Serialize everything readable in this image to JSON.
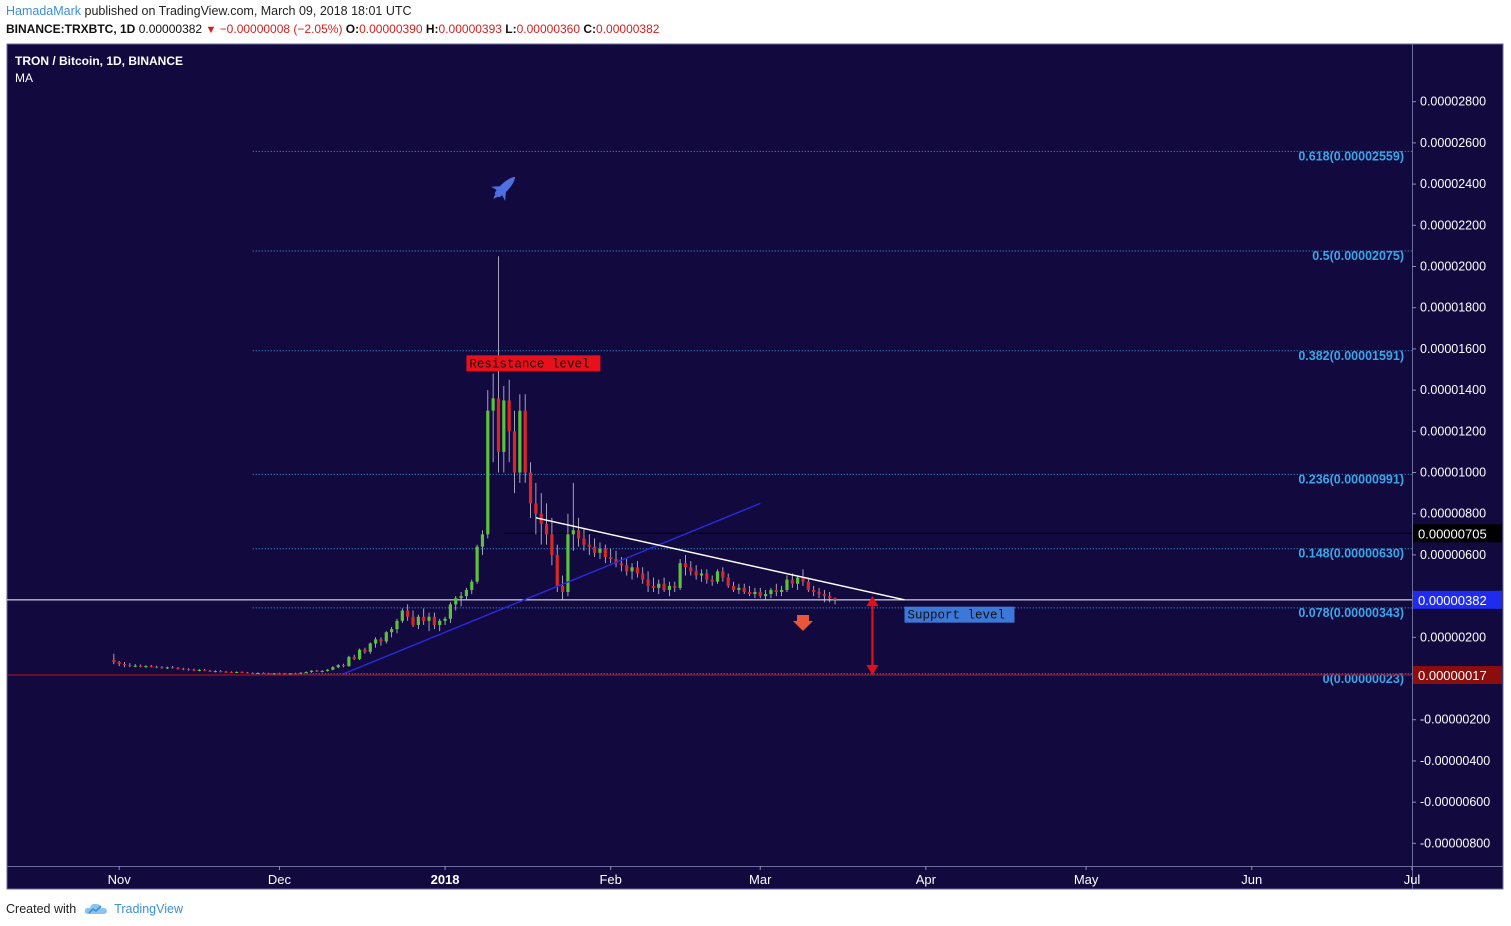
{
  "header": {
    "author": "HamadaMark",
    "published": " published on TradingView.com, March 09, 2018 18:01 UTC"
  },
  "ohlc": {
    "symbol": "BINANCE:TRXBTC, 1D",
    "last": "0.00000382",
    "change": "−0.00000008 (−2.05%)",
    "o_label": "O:",
    "o": "0.00000390",
    "h_label": "H:",
    "h": "0.00000393",
    "l_label": "L:",
    "l": "0.00000360",
    "c_label": "C:",
    "c": "0.00000382"
  },
  "legend": {
    "title": "TRON / Bitcoin, 1D, BINANCE",
    "indicator": "MA"
  },
  "footer": {
    "created_with": "Created with",
    "brand": "TradingView"
  },
  "colors": {
    "background": "#12093f",
    "up": "#5ac23b",
    "down": "#d9262a",
    "fib": "#3aa6e8",
    "trendline_blue": "#2b2bdc",
    "trendline_white": "#ffffff",
    "last_price_badge": "#1f2cf0",
    "low_badge": "#8b0d0d"
  },
  "chart_data": {
    "type": "candlestick",
    "title": "TRON / Bitcoin, 1D, BINANCE",
    "ylim": [
      -9.1e-06,
      3.08e-05
    ],
    "y_ticks": [
      "0.00002800",
      "0.00002600",
      "0.00002400",
      "0.00002200",
      "0.00002000",
      "0.00001800",
      "0.00001600",
      "0.00001400",
      "0.00001200",
      "0.00001000",
      "0.00000800",
      "0.00000600",
      "0.00000400",
      "0.00000200",
      "0.00000000",
      "-0.00000200",
      "-0.00000400",
      "-0.00000600",
      "-0.00000800"
    ],
    "y_tick_values": [
      2.8e-05,
      2.6e-05,
      2.4e-05,
      2.2e-05,
      2e-05,
      1.8e-05,
      1.6e-05,
      1.4e-05,
      1.2e-05,
      1e-05,
      8e-06,
      6e-06,
      4e-06,
      2e-06,
      0,
      -2e-06,
      -4e-06,
      -6e-06,
      -8e-06
    ],
    "x_ticks": [
      {
        "label": "Nov",
        "date": "2017-11-01",
        "bold": false
      },
      {
        "label": "Dec",
        "date": "2017-12-01",
        "bold": false
      },
      {
        "label": "2018",
        "date": "2018-01-01",
        "bold": true
      },
      {
        "label": "Feb",
        "date": "2018-02-01",
        "bold": false
      },
      {
        "label": "Mar",
        "date": "2018-03-01",
        "bold": false
      },
      {
        "label": "Apr",
        "date": "2018-04-01",
        "bold": false
      },
      {
        "label": "May",
        "date": "2018-05-01",
        "bold": false
      },
      {
        "label": "Jun",
        "date": "2018-06-01",
        "bold": false
      },
      {
        "label": "Jul",
        "date": "2018-07-01",
        "bold": false
      }
    ],
    "xlim": [
      "2017-10-11",
      "2018-07-01"
    ],
    "candles_start": "2017-10-31",
    "candles": [
      [
        9e-07,
        1.2e-06,
        7e-07,
        8e-07
      ],
      [
        8e-07,
        8.5e-07,
        6e-07,
        7e-07
      ],
      [
        7e-07,
        8e-07,
        5.5e-07,
        6.5e-07
      ],
      [
        6.5e-07,
        7.5e-07,
        5.5e-07,
        6e-07
      ],
      [
        6e-07,
        7e-07,
        5.5e-07,
        6.2e-07
      ],
      [
        6.2e-07,
        6.8e-07,
        5.5e-07,
        5.8e-07
      ],
      [
        5.8e-07,
        6.5e-07,
        5.2e-07,
        6e-07
      ],
      [
        6e-07,
        6.6e-07,
        5.4e-07,
        5.7e-07
      ],
      [
        5.7e-07,
        6.2e-07,
        5e-07,
        5.5e-07
      ],
      [
        5.5e-07,
        6e-07,
        4.8e-07,
        5.2e-07
      ],
      [
        5.2e-07,
        5.8e-07,
        4.6e-07,
        5.4e-07
      ],
      [
        5.4e-07,
        6e-07,
        4.8e-07,
        5e-07
      ],
      [
        5e-07,
        5.6e-07,
        4.4e-07,
        4.8e-07
      ],
      [
        4.8e-07,
        5.2e-07,
        4e-07,
        4.5e-07
      ],
      [
        4.5e-07,
        5e-07,
        3.8e-07,
        4.3e-07
      ],
      [
        4.3e-07,
        4.8e-07,
        3.6e-07,
        4e-07
      ],
      [
        4e-07,
        4.6e-07,
        3.5e-07,
        4.2e-07
      ],
      [
        4.2e-07,
        4.6e-07,
        3.6e-07,
        3.8e-07
      ],
      [
        3.8e-07,
        4.2e-07,
        3.2e-07,
        3.5e-07
      ],
      [
        3.5e-07,
        4e-07,
        3e-07,
        3.6e-07
      ],
      [
        3.6e-07,
        4e-07,
        3e-07,
        3.3e-07
      ],
      [
        3.3e-07,
        3.7e-07,
        2.8e-07,
        3.1e-07
      ],
      [
        3.1e-07,
        3.5e-07,
        2.7e-07,
        3e-07
      ],
      [
        3e-07,
        3.4e-07,
        2.6e-07,
        3.2e-07
      ],
      [
        3.2e-07,
        3.5e-07,
        2.7e-07,
        2.9e-07
      ],
      [
        2.9e-07,
        3.2e-07,
        2.5e-07,
        2.7e-07
      ],
      [
        2.7e-07,
        3e-07,
        2.3e-07,
        2.6e-07
      ],
      [
        2.6e-07,
        2.9e-07,
        2.2e-07,
        2.7e-07
      ],
      [
        2.7e-07,
        3e-07,
        2.3e-07,
        2.5e-07
      ],
      [
        2.5e-07,
        2.8e-07,
        2.2e-07,
        2.4e-07
      ],
      [
        2.4e-07,
        2.7e-07,
        2.1e-07,
        2.5e-07
      ],
      [
        2.5e-07,
        2.8e-07,
        2.2e-07,
        2.4e-07
      ],
      [
        2.4e-07,
        2.7e-07,
        2.1e-07,
        2.3e-07
      ],
      [
        2.3e-07,
        2.6e-07,
        2e-07,
        2.5e-07
      ],
      [
        2.5e-07,
        2.8e-07,
        2.2e-07,
        2.4e-07
      ],
      [
        2.4e-07,
        3e-07,
        2.2e-07,
        2.8e-07
      ],
      [
        2.8e-07,
        3.4e-07,
        2.5e-07,
        3.2e-07
      ],
      [
        3.2e-07,
        4e-07,
        2.8e-07,
        3.8e-07
      ],
      [
        3.8e-07,
        4.2e-07,
        3.2e-07,
        3.5e-07
      ],
      [
        3.5e-07,
        4e-07,
        3e-07,
        3.7e-07
      ],
      [
        3.7e-07,
        4.5e-07,
        3.4e-07,
        4.3e-07
      ],
      [
        4.3e-07,
        6e-07,
        4e-07,
        5.5e-07
      ],
      [
        5.5e-07,
        7e-07,
        5e-07,
        6.5e-07
      ],
      [
        6.5e-07,
        7.2e-07,
        5.5e-07,
        6e-07
      ],
      [
        6e-07,
        1.1e-06,
        5.8e-07,
        1.05e-06
      ],
      [
        1.05e-06,
        1.15e-06,
        9e-07,
        9.5e-07
      ],
      [
        9.5e-07,
        1.45e-06,
        9e-07,
        1.4e-06
      ],
      [
        1.4e-06,
        1.5e-06,
        1.2e-06,
        1.3e-06
      ],
      [
        1.3e-06,
        1.75e-06,
        1.2e-06,
        1.7e-06
      ],
      [
        1.7e-06,
        2e-06,
        1.5e-06,
        1.9e-06
      ],
      [
        1.9e-06,
        2e-06,
        1.6e-06,
        1.8e-06
      ],
      [
        1.8e-06,
        2.3e-06,
        1.7e-06,
        2.25e-06
      ],
      [
        2.25e-06,
        2.5e-06,
        2e-06,
        2.4e-06
      ],
      [
        2.4e-06,
        2.9e-06,
        2.2e-06,
        2.8e-06
      ],
      [
        2.8e-06,
        3.4e-06,
        2.7e-06,
        3.3e-06
      ],
      [
        3.3e-06,
        3.6e-06,
        2.8e-06,
        3e-06
      ],
      [
        3e-06,
        3.3e-06,
        2.5e-06,
        2.6e-06
      ],
      [
        2.6e-06,
        3.1e-06,
        2.4e-06,
        3e-06
      ],
      [
        3e-06,
        3.4e-06,
        2.6e-06,
        2.8e-06
      ],
      [
        2.8e-06,
        3.2e-06,
        2.3e-06,
        3e-06
      ],
      [
        3e-06,
        3.2e-06,
        2.4e-06,
        2.6e-06
      ],
      [
        2.6e-06,
        2.9e-06,
        2.3e-06,
        2.8e-06
      ],
      [
        2.8e-06,
        3e-06,
        2.6e-06,
        2.9e-06
      ],
      [
        2.9e-06,
        3.7e-06,
        2.7e-06,
        3.6e-06
      ],
      [
        3.6e-06,
        4e-06,
        3.3e-06,
        3.9e-06
      ],
      [
        3.9e-06,
        4.2e-06,
        3.5e-06,
        4e-06
      ],
      [
        4e-06,
        4.4e-06,
        3.8e-06,
        4.3e-06
      ],
      [
        4.3e-06,
        4.8e-06,
        4.1e-06,
        4.7e-06
      ],
      [
        4.7e-06,
        6.5e-06,
        4.6e-06,
        6.4e-06
      ],
      [
        6.4e-06,
        7.2e-06,
        6e-06,
        7e-06
      ],
      [
        7e-06,
        1.4e-05,
        6.8e-06,
        1.3e-05
      ],
      [
        1.3e-05,
        1.48e-05,
        1.05e-05,
        1.36e-05
      ],
      [
        1.36e-05,
        2.05e-05,
        1e-05,
        1.1e-05
      ],
      [
        1.1e-05,
        1.42e-05,
        1e-05,
        1.35e-05
      ],
      [
        1.35e-05,
        1.45e-05,
        1.05e-05,
        1.2e-05
      ],
      [
        1.2e-05,
        1.3e-05,
        9e-06,
        1e-05
      ],
      [
        1e-05,
        1.38e-05,
        9.5e-06,
        1.3e-05
      ],
      [
        1.3e-05,
        1.38e-05,
        9.5e-06,
        1e-05
      ],
      [
        1e-05,
        1.05e-05,
        7.8e-06,
        8.5e-06
      ],
      [
        8.5e-06,
        9.5e-06,
        7e-06,
        8e-06
      ],
      [
        8e-06,
        9e-06,
        6.5e-06,
        7.5e-06
      ],
      [
        7.5e-06,
        8.5e-06,
        6.5e-06,
        7e-06
      ],
      [
        7e-06,
        7.8e-06,
        5.5e-06,
        6e-06
      ],
      [
        6e-06,
        6.5e-06,
        4.2e-06,
        4.5e-06
      ],
      [
        4.5e-06,
        5e-06,
        3.8e-06,
        4.2e-06
      ],
      [
        4.2e-06,
        8e-06,
        4e-06,
        7e-06
      ],
      [
        7e-06,
        9.5e-06,
        6.2e-06,
        7.2e-06
      ],
      [
        7.2e-06,
        7.8e-06,
        6.4e-06,
        6.8e-06
      ],
      [
        6.8e-06,
        7.3e-06,
        6.2e-06,
        6.5e-06
      ],
      [
        6.5e-06,
        7e-06,
        6e-06,
        6.4e-06
      ],
      [
        6.4e-06,
        6.8e-06,
        5.9e-06,
        6.1e-06
      ],
      [
        6.1e-06,
        6.6e-06,
        5.8e-06,
        6.3e-06
      ],
      [
        6.3e-06,
        6.5e-06,
        5.6e-06,
        5.9e-06
      ],
      [
        5.9e-06,
        6.3e-06,
        5.6e-06,
        5.8e-06
      ],
      [
        5.8e-06,
        6.2e-06,
        5.4e-06,
        5.6e-06
      ],
      [
        5.6e-06,
        5.9e-06,
        5.2e-06,
        5.5e-06
      ],
      [
        5.5e-06,
        5.8e-06,
        5e-06,
        5.2e-06
      ],
      [
        5.2e-06,
        5.6e-06,
        4.8e-06,
        5.4e-06
      ],
      [
        5.4e-06,
        5.7e-06,
        4.9e-06,
        5.1e-06
      ],
      [
        5.1e-06,
        5.4e-06,
        4.6e-06,
        4.8e-06
      ],
      [
        4.8e-06,
        5.2e-06,
        4.2e-06,
        4.5e-06
      ],
      [
        4.5e-06,
        4.9e-06,
        4.2e-06,
        4.4e-06
      ],
      [
        4.4e-06,
        4.8e-06,
        4.1e-06,
        4.6e-06
      ],
      [
        4.6e-06,
        4.9e-06,
        4.2e-06,
        4.3e-06
      ],
      [
        4.3e-06,
        4.7e-06,
        4e-06,
        4.5e-06
      ],
      [
        4.5e-06,
        4.7e-06,
        4.2e-06,
        4.4e-06
      ],
      [
        4.4e-06,
        5.8e-06,
        4.3e-06,
        5.6e-06
      ],
      [
        5.6e-06,
        6e-06,
        5e-06,
        5.4e-06
      ],
      [
        5.4e-06,
        5.7e-06,
        5e-06,
        5.2e-06
      ],
      [
        5.2e-06,
        5.5e-06,
        4.8e-06,
        5e-06
      ],
      [
        5e-06,
        5.3e-06,
        4.7e-06,
        5.1e-06
      ],
      [
        5.1e-06,
        5.3e-06,
        4.6e-06,
        4.8e-06
      ],
      [
        4.8e-06,
        5e-06,
        4.5e-06,
        4.7e-06
      ],
      [
        4.7e-06,
        5.3e-06,
        4.6e-06,
        5.2e-06
      ],
      [
        5.2e-06,
        5.4e-06,
        4.7e-06,
        4.9e-06
      ],
      [
        4.9e-06,
        5.1e-06,
        4.4e-06,
        4.5e-06
      ],
      [
        4.5e-06,
        4.7e-06,
        4.2e-06,
        4.3e-06
      ],
      [
        4.3e-06,
        4.6e-06,
        4.1e-06,
        4.4e-06
      ],
      [
        4.4e-06,
        4.6e-06,
        4.1e-06,
        4.2e-06
      ],
      [
        4.2e-06,
        4.5e-06,
        4e-06,
        4.1e-06
      ],
      [
        4.1e-06,
        4.4e-06,
        3.9e-06,
        4.2e-06
      ],
      [
        4.2e-06,
        4.4e-06,
        3.9e-06,
        4e-06
      ],
      [
        4e-06,
        4.3e-06,
        3.8e-06,
        4.1e-06
      ],
      [
        4.1e-06,
        4.4e-06,
        3.9e-06,
        4.3e-06
      ],
      [
        4.3e-06,
        4.6e-06,
        4e-06,
        4.2e-06
      ],
      [
        4.2e-06,
        4.5e-06,
        4e-06,
        4.3e-06
      ],
      [
        4.3e-06,
        5e-06,
        4.2e-06,
        4.8e-06
      ],
      [
        4.8e-06,
        5.1e-06,
        4.4e-06,
        4.6e-06
      ],
      [
        4.6e-06,
        5e-06,
        4.3e-06,
        4.9e-06
      ],
      [
        4.9e-06,
        5.3e-06,
        4.5e-06,
        4.7e-06
      ],
      [
        4.7e-06,
        4.9e-06,
        4.2e-06,
        4.3e-06
      ],
      [
        4.3e-06,
        4.5e-06,
        4e-06,
        4.2e-06
      ],
      [
        4.2e-06,
        4.4e-06,
        3.9e-06,
        4.1e-06
      ],
      [
        4.1e-06,
        4.3e-06,
        3.7e-06,
        4e-06
      ],
      [
        4e-06,
        4.2e-06,
        3.7e-06,
        3.9e-06
      ],
      [
        3.9e-06,
        3.93e-06,
        3.6e-06,
        3.82e-06
      ]
    ],
    "fib_levels": [
      {
        "label": "0.618(0.00002559)",
        "value": 2.559e-05
      },
      {
        "label": "0.5(0.00002075)",
        "value": 2.075e-05
      },
      {
        "label": "0.382(0.00001591)",
        "value": 1.591e-05
      },
      {
        "label": "0.236(0.00000991)",
        "value": 9.91e-06
      },
      {
        "label": "0.148(0.00000630)",
        "value": 6.3e-06
      },
      {
        "label": "0.078(0.00000343)",
        "value": 3.43e-06
      },
      {
        "label": "0(0.00000023)",
        "value": 2.3e-07
      }
    ],
    "fib_start": "2017-11-26",
    "price_lines": [
      {
        "label": "0.00000705",
        "value": 7.05e-06,
        "style": "black"
      },
      {
        "label": "0.00000382",
        "value": 3.82e-06,
        "style": "last"
      },
      {
        "label": "0.00000017",
        "value": 1.7e-07,
        "style": "low"
      }
    ],
    "trendlines": [
      {
        "color": "#2b2bdc",
        "from": [
          "2017-12-13",
          2.3e-07
        ],
        "to": [
          "2018-03-01",
          8.5e-06
        ]
      },
      {
        "color": "#ffffff",
        "from": [
          "2018-01-18",
          7.8e-06
        ],
        "to": [
          "2018-03-28",
          3.82e-06
        ]
      }
    ],
    "annotations": [
      {
        "text": "Resistance level",
        "date": "2018-01-05",
        "value": 1.53e-05,
        "bg": "#e8101b",
        "fg": "#111111"
      },
      {
        "text": "Support level",
        "date": "2018-03-28",
        "value": 3.1e-06,
        "bg": "#3b78d8",
        "fg": "#111111"
      }
    ]
  }
}
